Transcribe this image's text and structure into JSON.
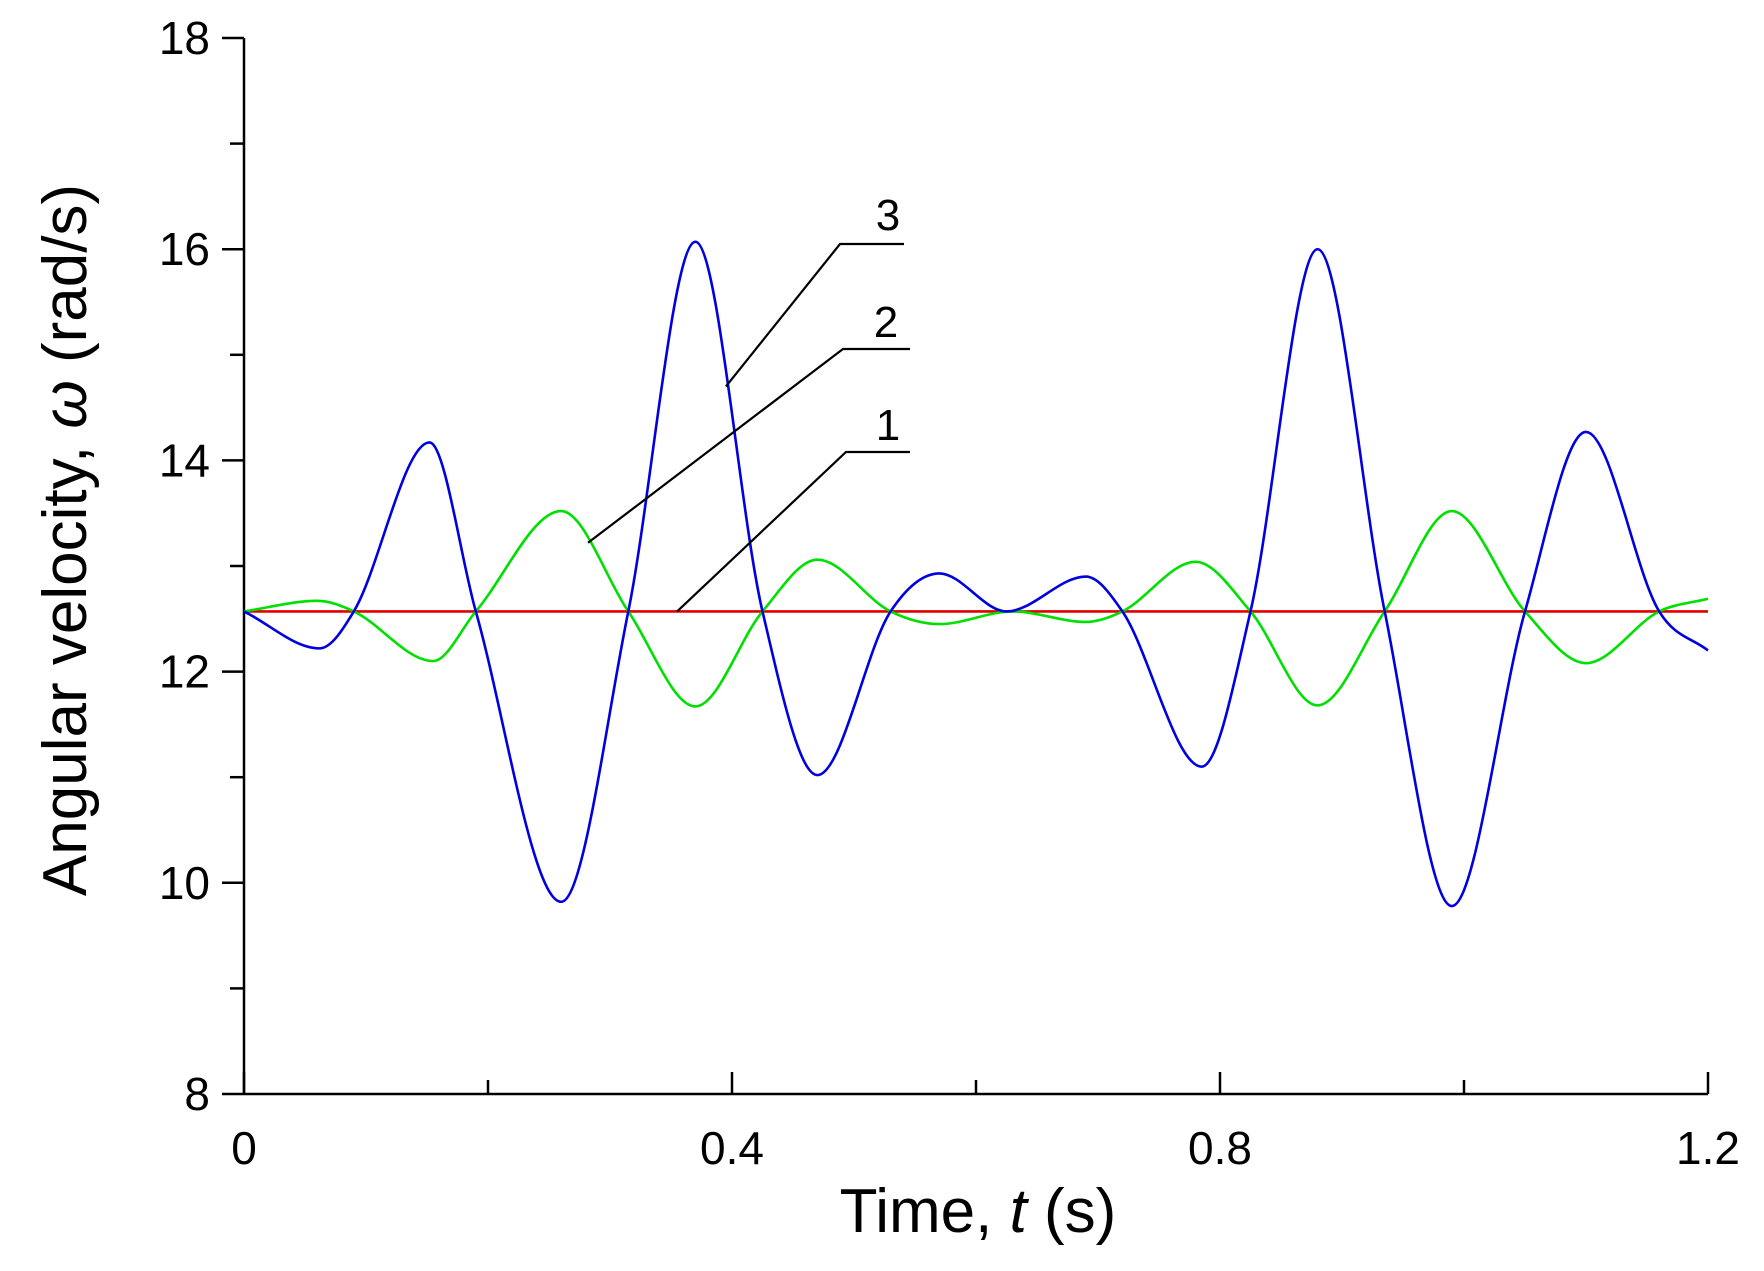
{
  "chart_data": {
    "type": "line",
    "xlabel_parts": {
      "prefix": "Time, ",
      "var": "t",
      "suffix": " (s)"
    },
    "ylabel_parts": {
      "prefix": "Angular velocity, ",
      "var": "ω",
      "suffix": " (rad/s)"
    },
    "xlim": [
      0,
      1.2
    ],
    "ylim": [
      8,
      18
    ],
    "x_major_ticks": [
      0,
      0.4,
      0.8,
      1.2
    ],
    "x_major_tick_labels": [
      "0",
      "0.4",
      "0.8",
      "1.2"
    ],
    "x_minor_ticks": [
      0.2,
      0.6,
      1.0
    ],
    "y_major_ticks": [
      8,
      10,
      12,
      14,
      16,
      18
    ],
    "y_major_tick_labels": [
      "8",
      "10",
      "12",
      "14",
      "16",
      "18"
    ],
    "y_minor_ticks": [
      9,
      11,
      13,
      15,
      17
    ],
    "grid": false,
    "series": [
      {
        "label": "1",
        "color": "#e00000",
        "x": [
          0,
          1.2
        ],
        "y": [
          12.57,
          12.57
        ]
      },
      {
        "label": "2",
        "color": "#00e000",
        "x": [
          0,
          0.06,
          0.09,
          0.155,
          0.19,
          0.26,
          0.315,
          0.37,
          0.425,
          0.47,
          0.53,
          0.57,
          0.63,
          0.69,
          0.72,
          0.78,
          0.825,
          0.88,
          0.935,
          0.99,
          1.05,
          1.1,
          1.16,
          1.2
        ],
        "y": [
          12.57,
          12.67,
          12.57,
          12.1,
          12.57,
          13.52,
          12.57,
          11.67,
          12.57,
          13.06,
          12.57,
          12.45,
          12.57,
          12.47,
          12.57,
          13.04,
          12.57,
          11.68,
          12.57,
          13.52,
          12.57,
          12.08,
          12.57,
          12.69
        ]
      },
      {
        "label": "3",
        "color": "#0000e0",
        "x": [
          0,
          0.062,
          0.09,
          0.152,
          0.19,
          0.26,
          0.315,
          0.37,
          0.425,
          0.47,
          0.53,
          0.57,
          0.625,
          0.69,
          0.72,
          0.785,
          0.825,
          0.88,
          0.935,
          0.99,
          1.05,
          1.1,
          1.16,
          1.2
        ],
        "y": [
          12.57,
          12.22,
          12.57,
          14.17,
          12.57,
          9.82,
          12.57,
          16.07,
          12.57,
          11.02,
          12.57,
          12.93,
          12.57,
          12.9,
          12.57,
          11.1,
          12.57,
          16.0,
          12.57,
          9.78,
          12.57,
          14.27,
          12.57,
          12.2
        ]
      }
    ],
    "annotations": [
      {
        "text": "1",
        "target_x": 0.355,
        "target_y": 12.57
      },
      {
        "text": "2",
        "target_x": 0.282,
        "target_y": 13.22
      },
      {
        "text": "3",
        "target_x": 0.395,
        "target_y": 14.7
      }
    ]
  }
}
